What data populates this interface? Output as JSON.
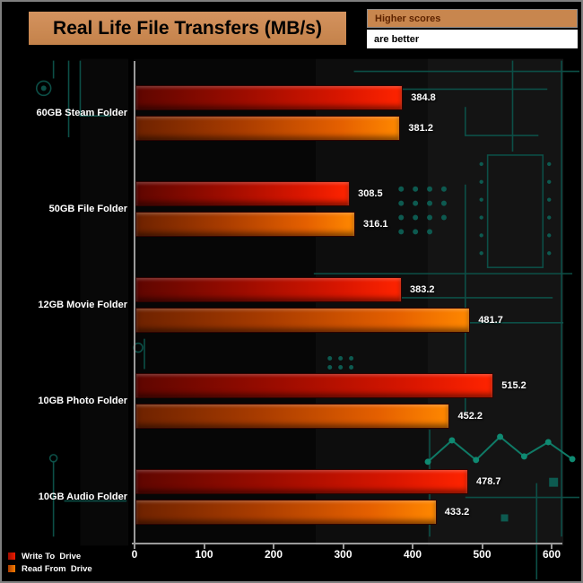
{
  "title": "Real Life File Transfers (MB/s)",
  "callout": {
    "line1": "Higher scores",
    "line2": "are better"
  },
  "legend": [
    {
      "label": "Write To  Drive",
      "color": "#e01500"
    },
    {
      "label": "Read From  Drive",
      "color": "#f07400"
    }
  ],
  "chart_data": {
    "type": "bar",
    "orientation": "horizontal",
    "title": "Real Life File Transfers (MB/s)",
    "categories": [
      "60GB Steam Folder",
      "50GB File Folder",
      "12GB Movie Folder",
      "10GB Photo Folder",
      "10GB Audio Folder"
    ],
    "series": [
      {
        "name": "Write To  Drive",
        "values": [
          384.8,
          308.5,
          383.2,
          515.2,
          478.7
        ]
      },
      {
        "name": "Read From  Drive",
        "values": [
          381.2,
          316.1,
          481.7,
          452.2,
          433.2
        ]
      }
    ],
    "xlim": [
      0,
      600
    ],
    "x_ticks": [
      0,
      100,
      200,
      300,
      400,
      500,
      600
    ],
    "higher_is_better": true,
    "grid": false,
    "legend_position": "bottom-left"
  },
  "colors": {
    "background": "#000000",
    "frame_border": "#7f7f7f",
    "title_box": "#cc8a52",
    "callout_box": "#c8864e",
    "callout_text": "#5f2400",
    "circuit_trace": "#0c4f47",
    "axis": "#9a9a9a",
    "write_bar_start": "#5f0600",
    "write_bar_end": "#ff2400",
    "read_bar_start": "#6e2200",
    "read_bar_end": "#ff8800"
  }
}
